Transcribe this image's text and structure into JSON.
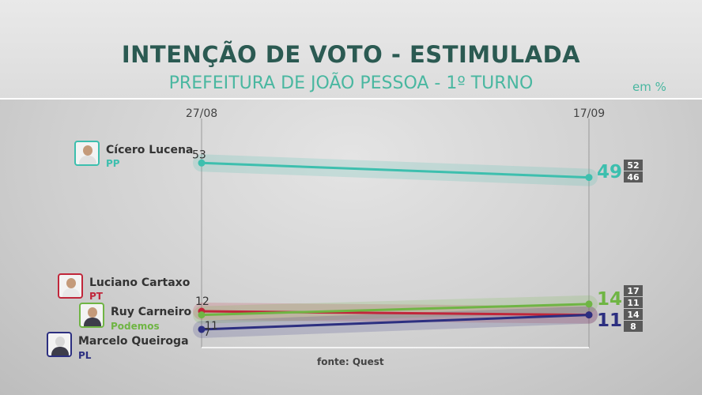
{
  "chart_data": {
    "type": "line",
    "title": "INTENÇÃO  DE VOTO  - ESTIMULADA",
    "subtitle": "PREFEITURA DE JOÃO PESSOA - 1º TURNO",
    "unit_label": "em %",
    "x": [
      "27/08",
      "17/09"
    ],
    "ylim": [
      0,
      55
    ],
    "grid": false,
    "series": [
      {
        "name": "Cícero Lucena",
        "party": "PP",
        "values": [
          53,
          49
        ],
        "color": "#3dbfae",
        "range": [
          "52",
          "46"
        ]
      },
      {
        "name": "Luciano Cartaxo",
        "party": "PT",
        "values": [
          12,
          11
        ],
        "color": "#c0263a",
        "range": [
          "14",
          "8"
        ]
      },
      {
        "name": "Ruy Carneiro",
        "party": "Podemos",
        "values": [
          11,
          14
        ],
        "color": "#6fb544",
        "range": [
          "17",
          "11"
        ]
      },
      {
        "name": "Marcelo Queiroga",
        "party": "PL",
        "values": [
          7,
          11
        ],
        "color": "#2c2f80",
        "range": [
          "14",
          "8"
        ]
      }
    ],
    "source": "fonte: Quest"
  }
}
